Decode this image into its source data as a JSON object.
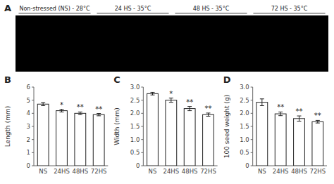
{
  "chart_data": [
    {
      "type": "image",
      "title": "A",
      "annotations": [
        "Non-stressed (NS) - 28°C",
        "24 HS - 35°C",
        "48 HS - 35°C",
        "72 HS - 35°C"
      ]
    },
    {
      "type": "bar",
      "title": "B",
      "y_label": "Length (mm)",
      "categories": [
        "NS",
        "24HS",
        "48HS",
        "72HS"
      ],
      "values": [
        4.7,
        4.2,
        4.0,
        3.9
      ],
      "errors": [
        0.12,
        0.1,
        0.1,
        0.09
      ],
      "annotations": [
        null,
        "*",
        "**",
        "**"
      ],
      "color": "#ffffff",
      "ylim": [
        0,
        6
      ],
      "yticks": [
        0,
        1,
        2,
        3,
        4,
        5,
        6
      ]
    },
    {
      "type": "bar",
      "title": "C",
      "y_label": "Width (mm)",
      "categories": [
        "NS",
        "24HS",
        "48HS",
        "72HS"
      ],
      "values": [
        2.75,
        2.5,
        2.18,
        1.95
      ],
      "errors": [
        0.05,
        0.08,
        0.08,
        0.06
      ],
      "annotations": [
        null,
        "*",
        "**",
        "**"
      ],
      "color": "#ffffff",
      "ylim": [
        0,
        3.0
      ],
      "yticks": [
        0,
        0.5,
        {
          "value": 1,
          "label": "1.0"
        },
        1.5,
        {
          "value": 2,
          "label": "2.0"
        },
        2.5,
        {
          "value": 3,
          "label": "3.0"
        }
      ]
    },
    {
      "type": "bar",
      "title": "D",
      "y_label": "100 seed weight (g)",
      "categories": [
        "NS",
        "24HS",
        "48HS",
        "72HS"
      ],
      "values": [
        2.42,
        1.98,
        1.8,
        1.68
      ],
      "errors": [
        0.13,
        0.07,
        0.1,
        0.05
      ],
      "annotations": [
        null,
        "**",
        "**",
        "**"
      ],
      "color": "#ffffff",
      "ylim": [
        0,
        3.0
      ],
      "yticks": [
        0,
        0.5,
        {
          "value": 1,
          "label": "1.0"
        },
        1.5,
        {
          "value": 2,
          "label": "2.0"
        },
        2.5,
        {
          "value": 3,
          "label": "3.0"
        }
      ]
    }
  ]
}
